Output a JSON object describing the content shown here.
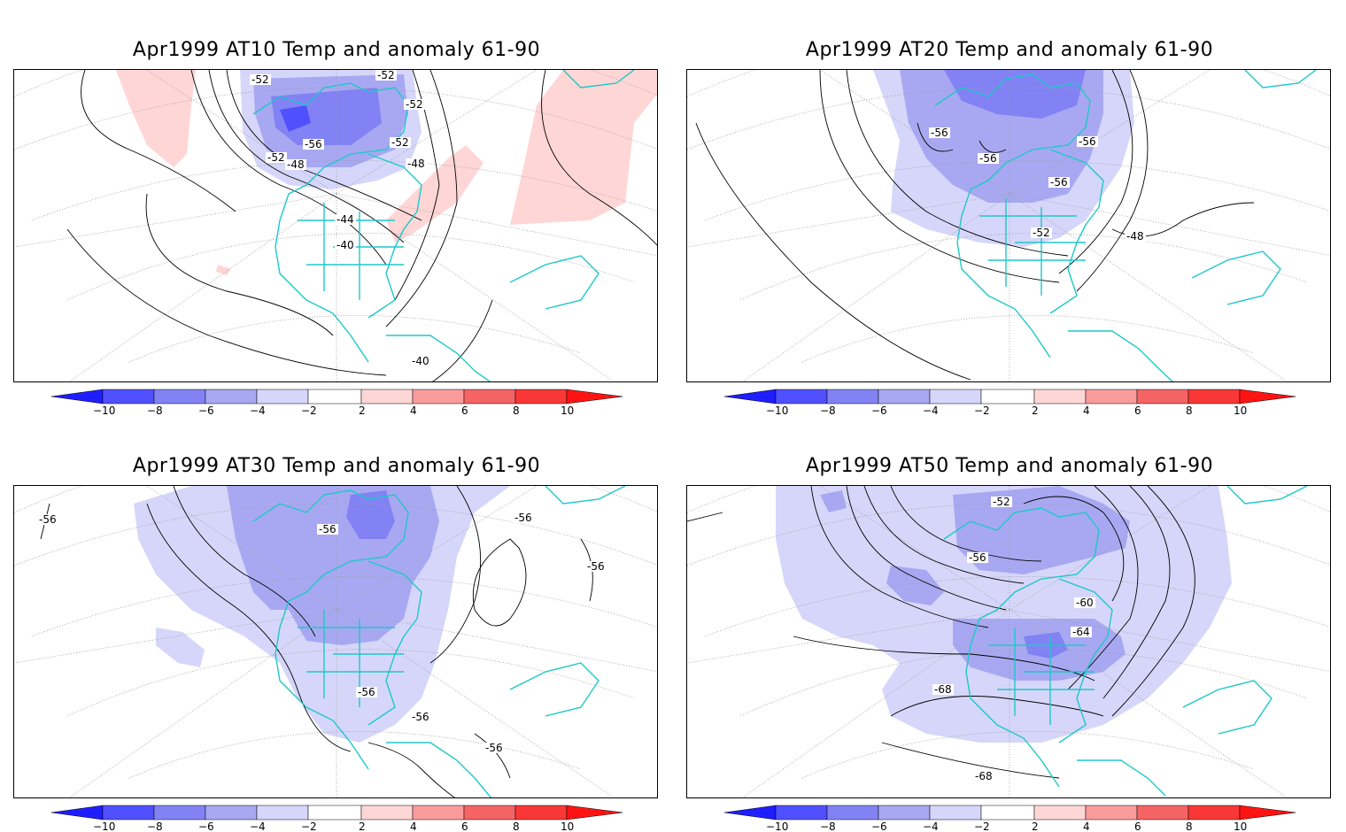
{
  "panels": [
    {
      "title": "Apr1999 AT10 Temp and anomaly 61-90",
      "labels": [
        "-52",
        "-52",
        "-52",
        "-52",
        "-56",
        "-52",
        "-48",
        "-48",
        "-44",
        "-40",
        "-40"
      ]
    },
    {
      "title": "Apr1999 AT20 Temp and anomaly 61-90",
      "labels": [
        "-56",
        "-56",
        "-56",
        "-56",
        "-52",
        "-48"
      ]
    },
    {
      "title": "Apr1999 AT30 Temp and anomaly 61-90",
      "labels": [
        "-56",
        "-56",
        "-56",
        "-56",
        "-56",
        "-56",
        "-56"
      ]
    },
    {
      "title": "Apr1999 AT50 Temp and anomaly 61-90",
      "labels": [
        "-52",
        "-56",
        "-60",
        "-64",
        "-68",
        "-68"
      ]
    }
  ],
  "colorbar": {
    "ticks": [
      "−10",
      "−8",
      "−6",
      "−4",
      "−2",
      "2",
      "4",
      "6",
      "8",
      "10"
    ],
    "colors": {
      "neg5": "#1e1eff",
      "neg4": "#5050ff",
      "neg3": "#8282f5",
      "neg2": "#a8a8f2",
      "neg1": "#d6d6fa",
      "pos1": "#ffd6d6",
      "pos2": "#fa9b9b",
      "pos3": "#f56464",
      "pos4": "#fa3737",
      "pos5": "#ff1414"
    }
  },
  "colors": {
    "coast": "#1ec8c8",
    "contour": "#000000",
    "grid": "#9a9a9a"
  }
}
